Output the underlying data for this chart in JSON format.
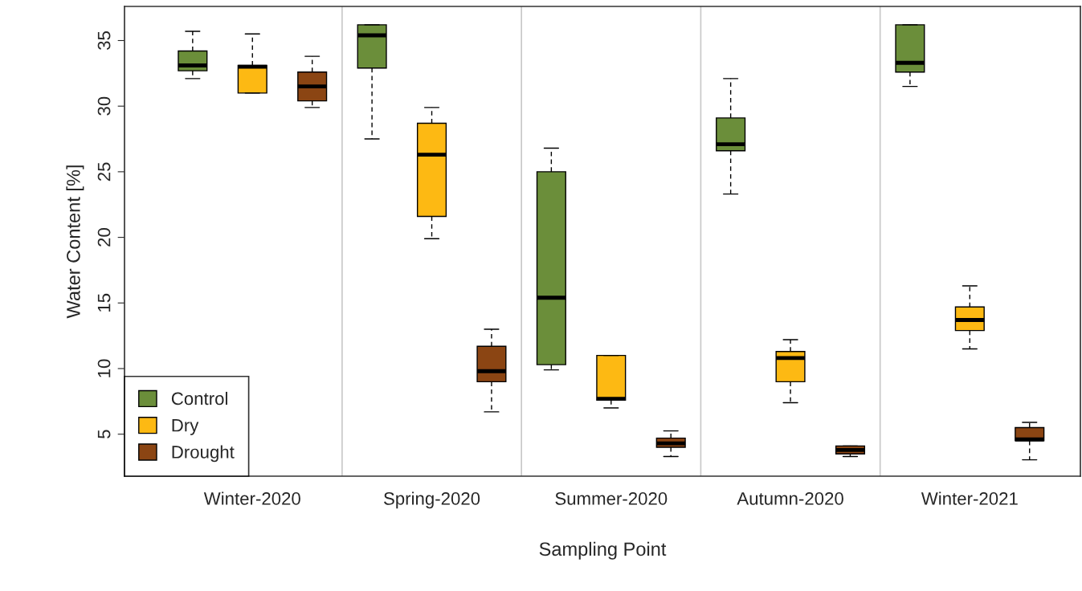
{
  "chart_data": {
    "type": "box",
    "xlabel": "Sampling Point",
    "ylabel": "Water Content [%]",
    "categories": [
      "Winter-2020",
      "Spring-2020",
      "Summer-2020",
      "Autumn-2020",
      "Winter-2021"
    ],
    "ylim": [
      1.8,
      37.6
    ],
    "yticks": [
      5,
      10,
      15,
      20,
      25,
      30,
      35
    ],
    "grid": "x",
    "legend": "bottom left",
    "series": [
      {
        "name": "Control",
        "color": "#6b8e3a",
        "boxes": [
          {
            "low": 32.1,
            "q1": 32.7,
            "median": 33.1,
            "q3": 34.2,
            "high": 35.7
          },
          {
            "low": 27.5,
            "q1": 32.9,
            "median": 35.4,
            "q3": 36.2,
            "high": 36.2
          },
          {
            "low": 9.9,
            "q1": 10.3,
            "median": 15.4,
            "q3": 25.0,
            "high": 26.8
          },
          {
            "low": 23.3,
            "q1": 26.6,
            "median": 27.1,
            "q3": 29.1,
            "high": 32.1
          },
          {
            "low": 31.5,
            "q1": 32.6,
            "median": 33.3,
            "q3": 36.2,
            "high": 36.2
          }
        ]
      },
      {
        "name": "Dry",
        "color": "#fdb913",
        "boxes": [
          {
            "low": 31.0,
            "q1": 31.0,
            "median": 33.0,
            "q3": 33.1,
            "high": 35.5
          },
          {
            "low": 19.9,
            "q1": 21.6,
            "median": 26.3,
            "q3": 28.7,
            "high": 29.9
          },
          {
            "low": 7.0,
            "q1": 7.6,
            "median": 7.7,
            "q3": 11.0,
            "high": 11.0
          },
          {
            "low": 7.4,
            "q1": 9.0,
            "median": 10.8,
            "q3": 11.3,
            "high": 12.2
          },
          {
            "low": 11.5,
            "q1": 12.9,
            "median": 13.7,
            "q3": 14.7,
            "high": 16.3
          }
        ]
      },
      {
        "name": "Drought",
        "color": "#8b4513",
        "boxes": [
          {
            "low": 29.9,
            "q1": 30.4,
            "median": 31.5,
            "q3": 32.6,
            "high": 33.8
          },
          {
            "low": 6.7,
            "q1": 9.0,
            "median": 9.8,
            "q3": 11.7,
            "high": 13.0
          },
          {
            "low": 3.3,
            "q1": 4.0,
            "median": 4.3,
            "q3": 4.7,
            "high": 5.25
          },
          {
            "low": 3.3,
            "q1": 3.5,
            "median": 3.8,
            "q3": 4.1,
            "high": 4.1
          },
          {
            "low": 3.05,
            "q1": 4.5,
            "median": 4.6,
            "q3": 5.5,
            "high": 5.9
          }
        ]
      }
    ]
  }
}
